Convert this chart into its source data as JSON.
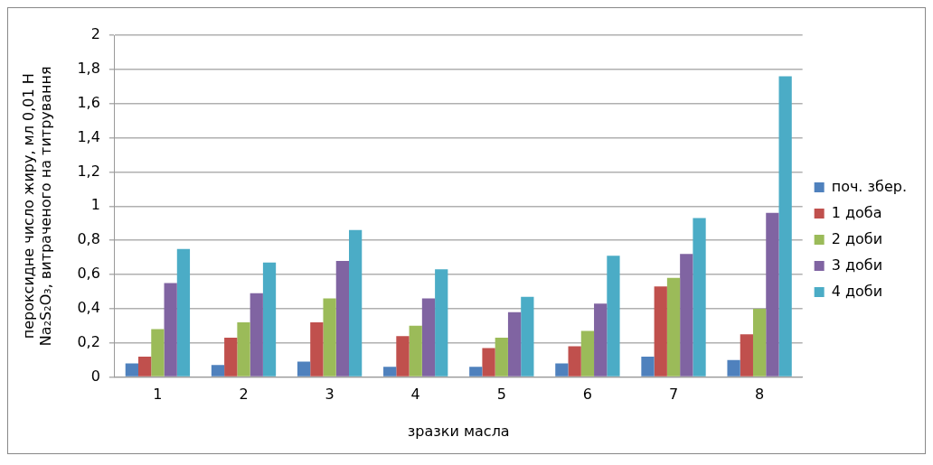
{
  "chart_data": {
    "type": "bar",
    "xlabel": "зразки масла",
    "ylabel": "пероксидне число жиру, мл 0,01 Н\nNa₂S₂O₃, витраченого на титрування",
    "categories": [
      "1",
      "2",
      "3",
      "4",
      "5",
      "6",
      "7",
      "8"
    ],
    "series": [
      {
        "name": "поч. збер.",
        "color": "#4f81bd",
        "values": [
          0.08,
          0.07,
          0.09,
          0.06,
          0.06,
          0.08,
          0.12,
          0.1
        ]
      },
      {
        "name": "1 доба",
        "color": "#c0504d",
        "values": [
          0.12,
          0.23,
          0.32,
          0.24,
          0.17,
          0.18,
          0.53,
          0.25
        ]
      },
      {
        "name": "2 доби",
        "color": "#9bbb59",
        "values": [
          0.28,
          0.32,
          0.46,
          0.3,
          0.23,
          0.27,
          0.58,
          0.4
        ]
      },
      {
        "name": "3 доби",
        "color": "#8064a2",
        "values": [
          0.55,
          0.49,
          0.68,
          0.46,
          0.38,
          0.43,
          0.72,
          0.96
        ]
      },
      {
        "name": "4 доби",
        "color": "#4bacc6",
        "values": [
          0.75,
          0.67,
          0.86,
          0.63,
          0.47,
          0.71,
          0.93,
          1.76
        ]
      }
    ],
    "ylim": [
      0,
      2
    ],
    "yticks": [
      0,
      {
        "value": 0.2,
        "label": "0,2"
      },
      {
        "value": 0.4,
        "label": "0,4"
      },
      {
        "value": 0.6,
        "label": "0,6"
      },
      {
        "value": 0.8,
        "label": "0,8"
      },
      1,
      {
        "value": 1.2,
        "label": "1,2"
      },
      {
        "value": 1.4,
        "label": "1,4"
      },
      {
        "value": 1.6,
        "label": "1,6"
      },
      {
        "value": 1.8,
        "label": "1,8"
      },
      2
    ],
    "grid": "y",
    "legend": "right"
  }
}
